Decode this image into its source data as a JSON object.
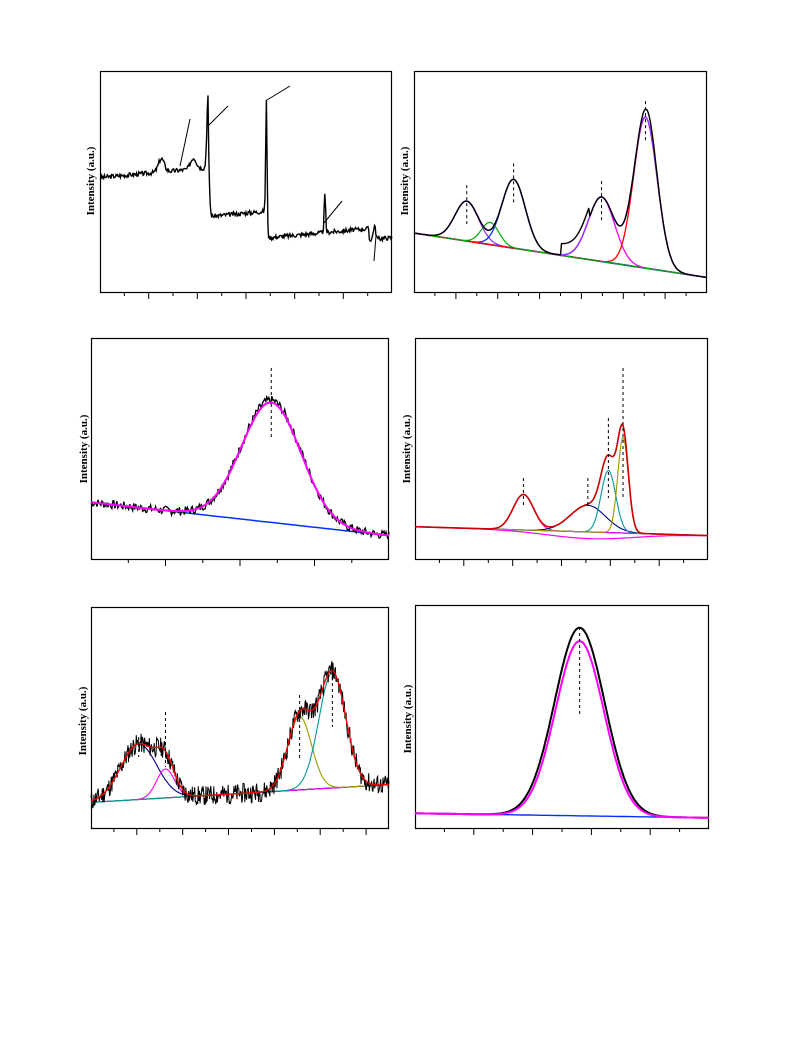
{
  "colors": {
    "frame": "#000000",
    "spectrum": "#000000",
    "baseline": "#1f3bd6",
    "magenta": "#ff00ff",
    "purple": "#9933ff",
    "green": "#00aa00",
    "blue": "#0033ff",
    "red": "#ff0000",
    "darkred": "#cc0000",
    "olive": "#999900",
    "teal": "#009999",
    "navy": "#000080"
  },
  "panels": [
    {
      "id": "survey",
      "ylabel": "Intensity (a.u.)"
    },
    {
      "id": "fit-a",
      "ylabel": "Intensity (a.u.)"
    },
    {
      "id": "fit-b",
      "ylabel": "Intensity (a.u.)"
    },
    {
      "id": "fit-c",
      "ylabel": "Intensity (a.u.)"
    },
    {
      "id": "fit-d",
      "ylabel": "Intensity (a.u.)"
    },
    {
      "id": "fit-e",
      "ylabel": "Intensity (a.u.)"
    }
  ],
  "chart_data": [
    {
      "type": "line",
      "ylabel": "Intensity (a.u.)",
      "xlabel": "",
      "series": [
        {
          "values_note": "survey spectrum with step-like edges"
        }
      ],
      "grid": false
    },
    {
      "type": "line",
      "ylabel": "Intensity (a.u.)",
      "xlabel": "",
      "peaks": [
        0.18,
        0.34,
        0.64,
        0.79
      ],
      "grid": false
    },
    {
      "type": "line",
      "ylabel": "Intensity (a.u.)",
      "xlabel": "",
      "peaks": [
        0.61
      ],
      "grid": false
    },
    {
      "type": "line",
      "ylabel": "Intensity (a.u.)",
      "xlabel": "",
      "peaks": [
        0.37,
        0.59,
        0.66,
        0.71
      ],
      "grid": false
    },
    {
      "type": "line",
      "ylabel": "Intensity (a.u.)",
      "xlabel": "",
      "peaks": [
        0.16,
        0.25,
        0.7,
        0.81
      ],
      "grid": false
    },
    {
      "type": "line",
      "ylabel": "Intensity (a.u.)",
      "xlabel": "",
      "peaks": [
        0.56
      ],
      "grid": false
    }
  ]
}
